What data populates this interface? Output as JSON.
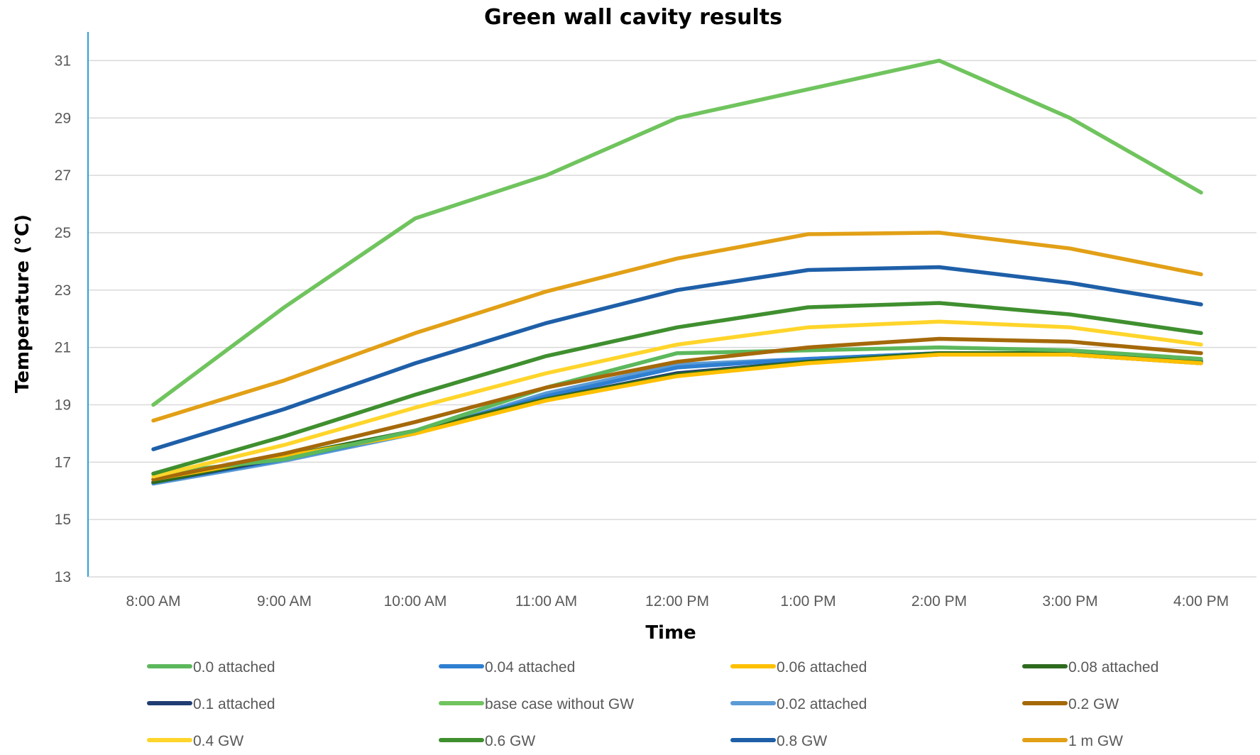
{
  "chart_data": {
    "type": "line",
    "title": "Green wall cavity results",
    "xlabel": "Time",
    "ylabel": "Temperature (°C)",
    "ylim": [
      13,
      32
    ],
    "yticks": [
      13,
      15,
      17,
      19,
      21,
      23,
      25,
      27,
      29,
      31
    ],
    "grid": true,
    "legend_position": "bottom",
    "categories": [
      "8:00 AM",
      "9:00 AM",
      "10:00 AM",
      "11:00 AM",
      "12:00 PM",
      "1:00 PM",
      "2:00 PM",
      "3:00 PM",
      "4:00 PM"
    ],
    "series": [
      {
        "name": "0.0  attached",
        "color": "#5cb85c",
        "values": [
          16.6,
          17.1,
          18.1,
          19.6,
          20.8,
          20.9,
          21.0,
          20.9,
          20.6
        ]
      },
      {
        "name": "0.04  attached",
        "color": "#2f7fd1",
        "values": [
          16.3,
          17.1,
          18.05,
          19.3,
          20.3,
          20.6,
          20.8,
          20.8,
          20.55
        ]
      },
      {
        "name": "0.06  attached",
        "color": "#ffc000",
        "values": [
          16.4,
          17.2,
          18.0,
          19.15,
          20.0,
          20.45,
          20.75,
          20.75,
          20.45
        ]
      },
      {
        "name": "0.08  attached",
        "color": "#2d6b1f",
        "values": [
          16.3,
          17.2,
          18.1,
          19.2,
          20.05,
          20.5,
          20.8,
          20.8,
          20.5
        ]
      },
      {
        "name": "0.1 attached",
        "color": "#1f3d73",
        "values": [
          16.3,
          17.15,
          18.1,
          19.2,
          20.1,
          20.5,
          20.75,
          20.75,
          20.45
        ]
      },
      {
        "name": "base case without GW",
        "color": "#70c45e",
        "values": [
          19.0,
          22.4,
          25.5,
          27.0,
          29.0,
          30.0,
          31.0,
          29.0,
          26.4
        ]
      },
      {
        "name": "0.02 attached",
        "color": "#5b9bd5",
        "values": [
          16.25,
          17.05,
          18.0,
          19.4,
          20.4,
          20.6,
          20.8,
          20.8,
          20.5
        ]
      },
      {
        "name": "0.2  GW",
        "color": "#a5690a",
        "values": [
          16.4,
          17.3,
          18.4,
          19.6,
          20.5,
          21.0,
          21.3,
          21.2,
          20.8
        ]
      },
      {
        "name": "0.4  GW",
        "color": "#ffd52b",
        "values": [
          16.5,
          17.6,
          18.9,
          20.1,
          21.1,
          21.7,
          21.9,
          21.7,
          21.1
        ]
      },
      {
        "name": "0.6  GW",
        "color": "#3f8f2f",
        "values": [
          16.6,
          17.9,
          19.35,
          20.7,
          21.7,
          22.4,
          22.55,
          22.15,
          21.5
        ]
      },
      {
        "name": "0.8  GW",
        "color": "#1e5fa8",
        "values": [
          17.45,
          18.85,
          20.45,
          21.85,
          23.0,
          23.7,
          23.8,
          23.25,
          22.5
        ]
      },
      {
        "name": "1 m GW",
        "color": "#e2a017",
        "values": [
          18.45,
          19.85,
          21.5,
          22.95,
          24.1,
          24.95,
          25.0,
          24.45,
          23.55
        ]
      }
    ]
  }
}
